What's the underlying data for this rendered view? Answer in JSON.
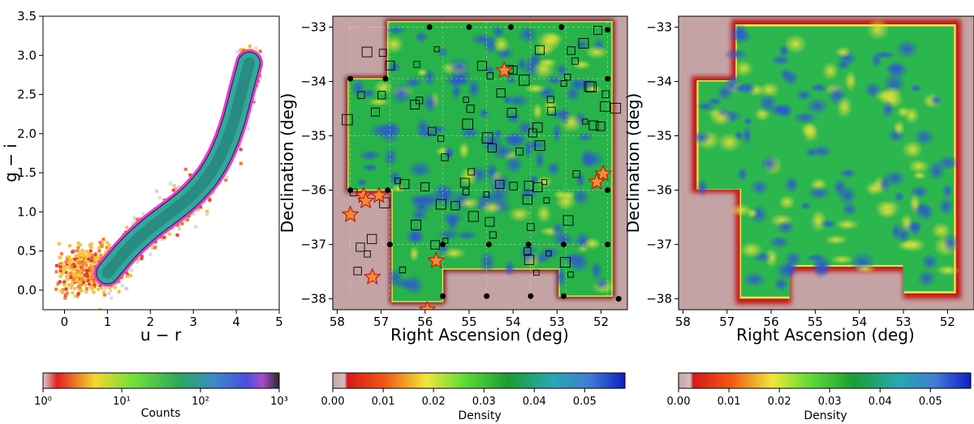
{
  "chart_data": [
    {
      "type": "heatmap",
      "title": "",
      "xlabel": "u − r",
      "ylabel": "g − i",
      "xlim": [
        -0.5,
        5
      ],
      "ylim": [
        -0.25,
        3.5
      ],
      "x_ticks": [
        "0",
        "1",
        "2",
        "3",
        "4",
        "5"
      ],
      "y_ticks": [
        "0.0",
        "0.5",
        "1.0",
        "1.5",
        "2.0",
        "2.5",
        "3.0",
        "3.5"
      ],
      "ridge": [
        [
          1.0,
          0.22
        ],
        [
          1.5,
          0.55
        ],
        [
          2.0,
          0.8
        ],
        [
          2.5,
          1.0
        ],
        [
          3.0,
          1.22
        ],
        [
          3.5,
          1.55
        ],
        [
          3.9,
          2.05
        ],
        [
          4.15,
          2.6
        ],
        [
          4.3,
          2.9
        ]
      ],
      "colorbar": {
        "label": "Counts",
        "scale": "log",
        "range": [
          1,
          1000
        ],
        "ticks": [
          "10⁰",
          "10¹",
          "10²",
          "10³"
        ]
      }
    },
    {
      "type": "heatmap",
      "title": "",
      "xlabel": "Right Ascension (deg)",
      "ylabel": "Declination (deg)",
      "xlim": [
        58.1,
        51.4
      ],
      "ylim": [
        -38.2,
        -32.8
      ],
      "x_ticks": [
        "58",
        "57",
        "56",
        "55",
        "54",
        "53",
        "52"
      ],
      "y_ticks": [
        "−33",
        "−34",
        "−35",
        "−36",
        "−37",
        "−38"
      ],
      "stars": [
        [
          54.2,
          -33.8
        ],
        [
          51.95,
          -35.7
        ],
        [
          52.1,
          -35.85
        ],
        [
          57.4,
          -36.1
        ],
        [
          57.35,
          -36.2
        ],
        [
          57.05,
          -36.1
        ],
        [
          57.7,
          -36.45
        ],
        [
          55.75,
          -37.3
        ],
        [
          57.2,
          -37.6
        ],
        [
          55.95,
          -38.2
        ]
      ],
      "colorbar": {
        "label": "Density",
        "scale": "linear",
        "range": [
          0,
          0.058
        ],
        "ticks": [
          "0.00",
          "0.01",
          "0.02",
          "0.03",
          "0.04",
          "0.05"
        ]
      }
    },
    {
      "type": "heatmap",
      "title": "",
      "xlabel": "Right Ascension (deg)",
      "ylabel": "Declination (deg)",
      "xlim": [
        58.1,
        51.4
      ],
      "ylim": [
        -38.2,
        -32.8
      ],
      "x_ticks": [
        "58",
        "57",
        "56",
        "55",
        "54",
        "53",
        "52"
      ],
      "y_ticks": [
        "−33",
        "−34",
        "−35",
        "−36",
        "−37",
        "−38"
      ],
      "colorbar": {
        "label": "Density",
        "scale": "linear",
        "range": [
          0,
          0.058
        ],
        "ticks": [
          "0.00",
          "0.01",
          "0.02",
          "0.03",
          "0.04",
          "0.05"
        ]
      }
    }
  ],
  "colors": {
    "background": "#c4a3a4",
    "edge_red": "#b2151b",
    "density_mid": "#27b34a",
    "density_high": "#3f86d9",
    "ridge_magenta": "#e53ad8",
    "ridge_teal": "#31a89d",
    "star_orange": "#f68a2c"
  }
}
